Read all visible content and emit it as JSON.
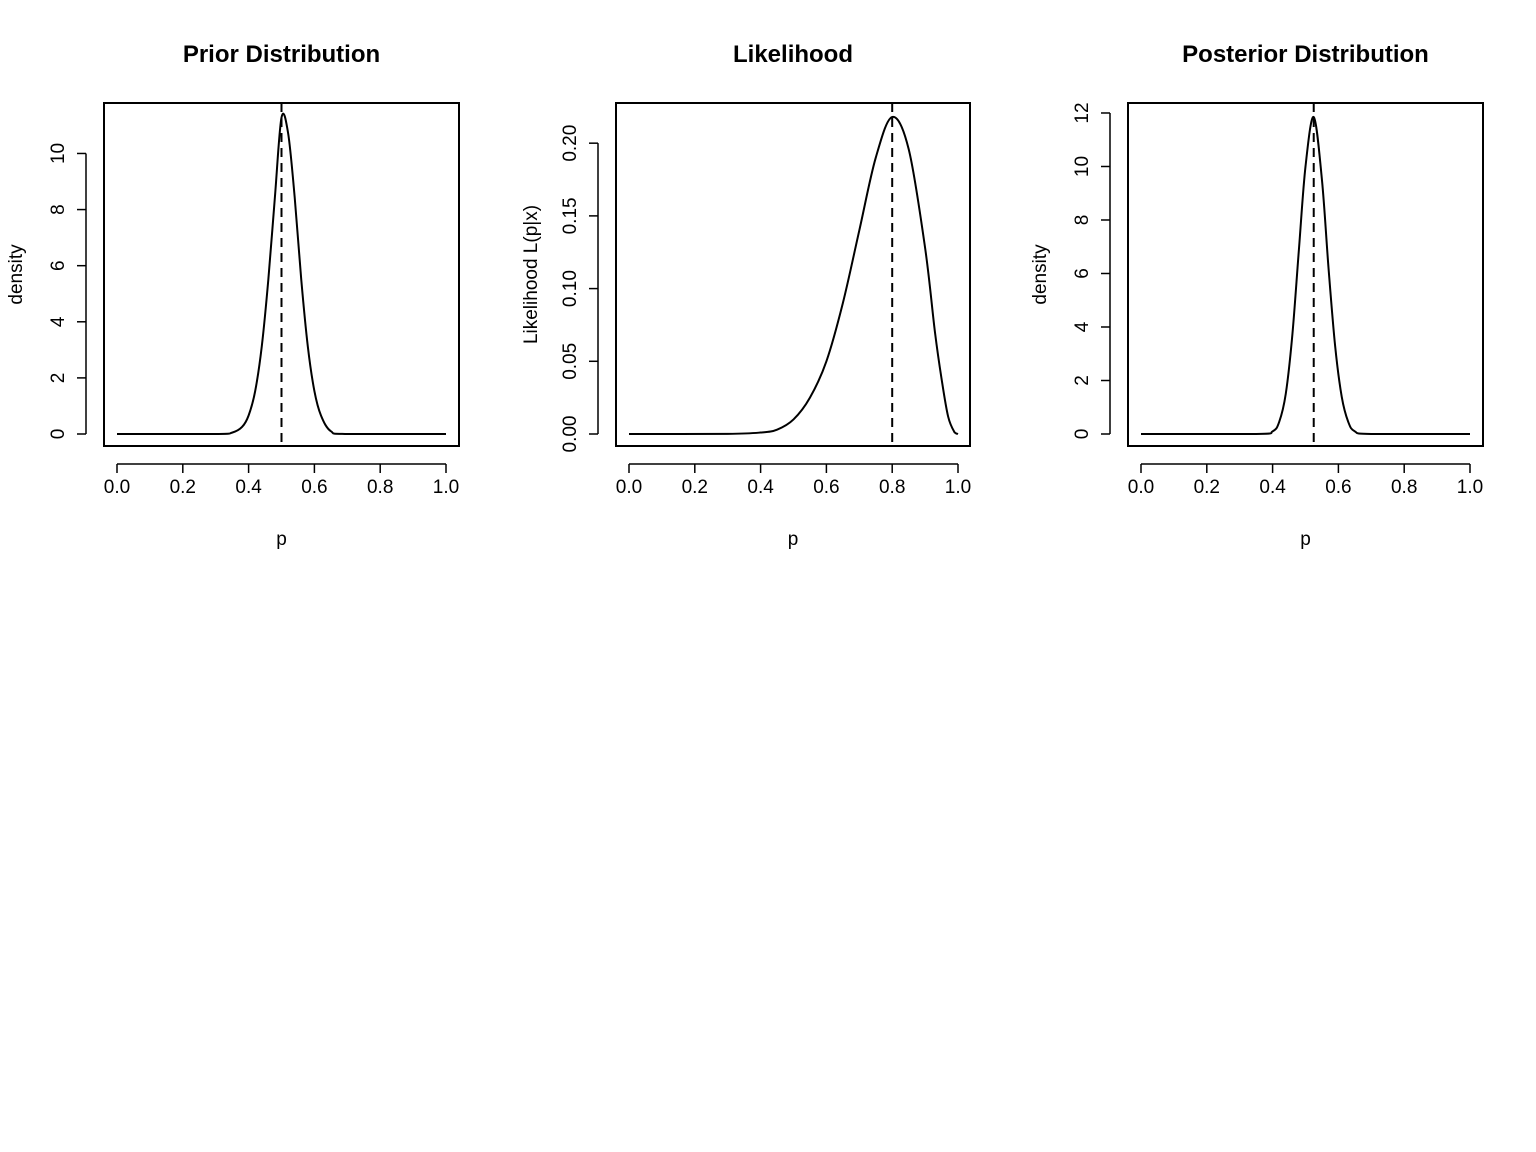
{
  "chart_data": [
    {
      "type": "line",
      "title": "Prior Distribution",
      "xlabel": "p",
      "ylabel": "density",
      "xlim": [
        0,
        1
      ],
      "ylim": [
        0,
        11.3
      ],
      "xticks": [
        "0.0",
        "0.2",
        "0.4",
        "0.6",
        "0.8",
        "1.0"
      ],
      "yticks": [
        "0",
        "2",
        "4",
        "6",
        "8",
        "10"
      ],
      "vline": 0.5,
      "series": [
        {
          "x": [
            0.0,
            0.3,
            0.35,
            0.38,
            0.4,
            0.42,
            0.44,
            0.46,
            0.48,
            0.5,
            0.52,
            0.54,
            0.56,
            0.58,
            0.6,
            0.62,
            0.65,
            0.7,
            1.0
          ],
          "values": [
            0,
            0.0,
            0.05,
            0.25,
            0.66,
            1.53,
            3.12,
            5.51,
            8.45,
            11.28,
            10.73,
            8.45,
            5.51,
            3.12,
            1.53,
            0.66,
            0.1,
            0.0,
            0
          ]
        }
      ]
    },
    {
      "type": "line",
      "title": "Likelihood",
      "xlabel": "p",
      "ylabel": "Likelihood L(p|x)",
      "xlim": [
        0,
        1
      ],
      "ylim": [
        0,
        0.218
      ],
      "xticks": [
        "0.0",
        "0.2",
        "0.4",
        "0.6",
        "0.8",
        "1.0"
      ],
      "yticks": [
        "0.00",
        "0.05",
        "0.10",
        "0.15",
        "0.20"
      ],
      "vline": 0.8,
      "series": [
        {
          "x": [
            0.0,
            0.3,
            0.4,
            0.45,
            0.5,
            0.55,
            0.6,
            0.65,
            0.7,
            0.75,
            0.8,
            0.85,
            0.9,
            0.93,
            0.95,
            0.97,
            0.99,
            1.0
          ],
          "values": [
            0,
            0.0001,
            0.001,
            0.003,
            0.01,
            0.025,
            0.05,
            0.09,
            0.14,
            0.19,
            0.218,
            0.196,
            0.128,
            0.07,
            0.038,
            0.012,
            0.001,
            0
          ]
        }
      ]
    },
    {
      "type": "line",
      "title": "Posterior Distribution",
      "xlabel": "p",
      "ylabel": "density",
      "xlim": [
        0,
        1
      ],
      "ylim": [
        0,
        11.85
      ],
      "xticks": [
        "0.0",
        "0.2",
        "0.4",
        "0.6",
        "0.8",
        "1.0"
      ],
      "yticks": [
        "0",
        "2",
        "4",
        "6",
        "8",
        "10",
        "12"
      ],
      "vline": 0.525,
      "series": [
        {
          "x": [
            0.0,
            0.35,
            0.4,
            0.42,
            0.44,
            0.46,
            0.48,
            0.5,
            0.525,
            0.55,
            0.57,
            0.59,
            0.61,
            0.63,
            0.65,
            0.7,
            1.0
          ],
          "values": [
            0,
            0.0,
            0.1,
            0.45,
            1.5,
            3.7,
            6.9,
            10.0,
            11.85,
            9.5,
            6.2,
            3.3,
            1.4,
            0.45,
            0.1,
            0.0,
            0
          ]
        }
      ]
    }
  ]
}
